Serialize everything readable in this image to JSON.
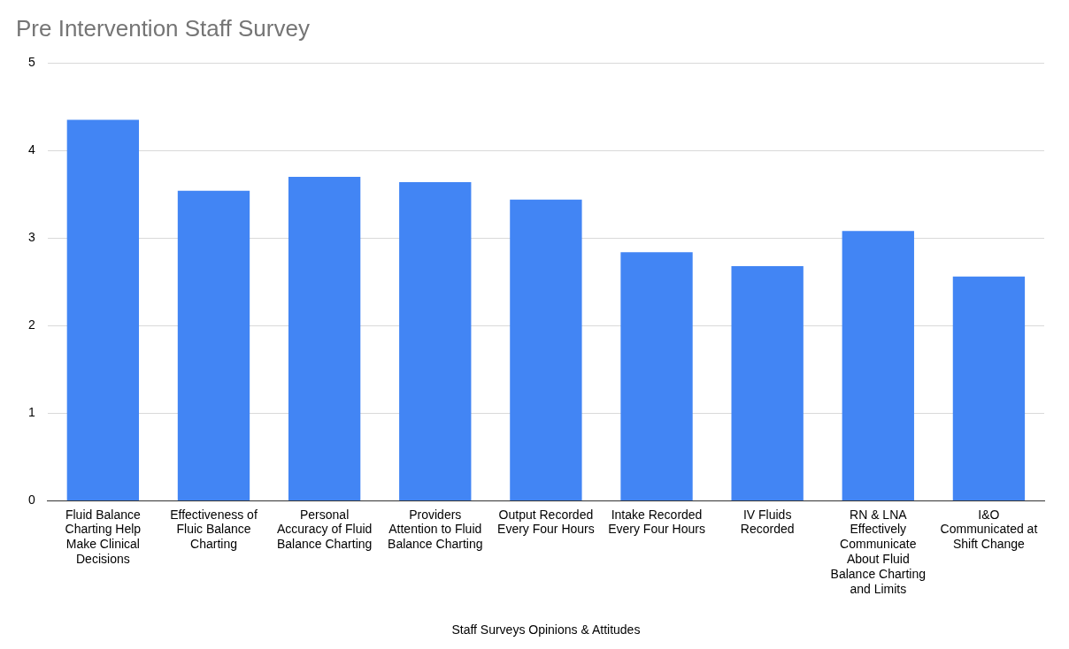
{
  "chart_data": {
    "type": "bar",
    "title": "Pre Intervention Staff Survey",
    "xlabel": "Staff Surveys Opinions & Attitudes",
    "categories": [
      "Fluid Balance Charting Help Make Clinical Decisions",
      "Effectiveness of Fluic Balance Charting",
      "Personal Accuracy of Fluid Balance Charting",
      "Providers Attention to Fluid Balance Charting",
      "Output Recorded Every Four Hours",
      "Intake Recorded Every Four Hours",
      "IV Fluids Recorded",
      "RN & LNA Effectively Communicate About Fluid Balance Charting and Limits",
      "I&O Communicated at Shift Change"
    ],
    "values": [
      4.35,
      3.54,
      3.7,
      3.64,
      3.44,
      2.84,
      2.68,
      3.08,
      2.56
    ],
    "color": "#4285f4",
    "ylim": [
      0,
      5
    ],
    "yticks": [
      0,
      1,
      2,
      3,
      4,
      5
    ],
    "grid": "y",
    "legend": false
  }
}
